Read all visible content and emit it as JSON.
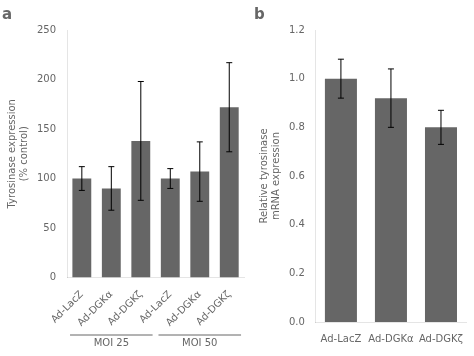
{
  "chart_data": [
    {
      "type": "bar",
      "title": "a",
      "categories": [
        "Ad-LacZ",
        "Ad-DGKα",
        "Ad-DGKζ",
        "Ad-LacZ",
        "Ad-DGKα",
        "Ad-DGKζ"
      ],
      "values": [
        100,
        90,
        138,
        100,
        107,
        172
      ],
      "errors": [
        12,
        22,
        60,
        10,
        30,
        45
      ],
      "annotations": [
        "MOI 25",
        "MOI 50"
      ],
      "ylabel": "Tyrosinase expression\n(% control)",
      "color": "#666666",
      "ylim": [
        0,
        250
      ],
      "yticks": [
        0,
        50,
        100,
        150,
        200,
        250
      ],
      "grid": false
    },
    {
      "type": "bar",
      "title": "b",
      "categories": [
        "Ad-LacZ",
        "Ad-DGKα",
        "Ad-DGKζ"
      ],
      "values": [
        1.0,
        0.92,
        0.8
      ],
      "errors": [
        0.08,
        0.12,
        0.07
      ],
      "ylabel": "Relative tyrosinase\nmRNA expression",
      "color": "#666666",
      "ylim": [
        0,
        1.2
      ],
      "yticks": [
        {
          "value": 0,
          "label": "0.0"
        },
        0.2,
        0.4,
        0.6,
        0.8,
        {
          "value": 1.0,
          "label": "1.0"
        },
        1.2
      ],
      "grid": false
    }
  ]
}
